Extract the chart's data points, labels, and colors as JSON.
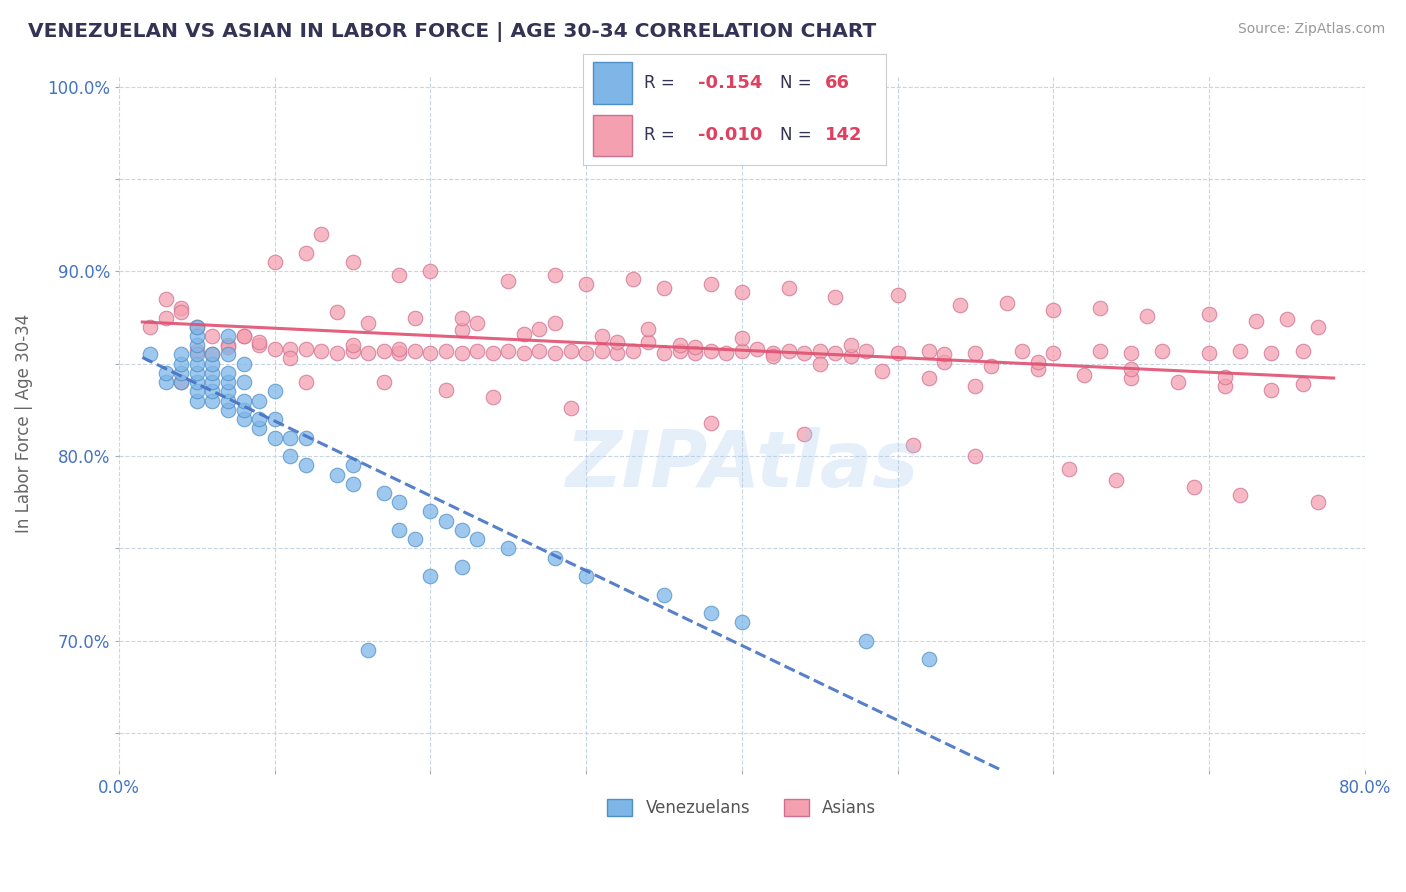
{
  "title": "VENEZUELAN VS ASIAN IN LABOR FORCE | AGE 30-34 CORRELATION CHART",
  "source_text": "Source: ZipAtlas.com",
  "ylabel": "In Labor Force | Age 30-34",
  "xlim": [
    0.0,
    0.8
  ],
  "ylim": [
    0.63,
    1.005
  ],
  "blue_color": "#7EB6E8",
  "pink_color": "#F4A0B0",
  "blue_line_color": "#4472C4",
  "pink_line_color": "#E05070",
  "venezuelan_x": [
    0.02,
    0.03,
    0.03,
    0.04,
    0.04,
    0.04,
    0.04,
    0.05,
    0.05,
    0.05,
    0.05,
    0.05,
    0.05,
    0.05,
    0.05,
    0.05,
    0.06,
    0.06,
    0.06,
    0.06,
    0.06,
    0.06,
    0.07,
    0.07,
    0.07,
    0.07,
    0.07,
    0.07,
    0.07,
    0.08,
    0.08,
    0.08,
    0.08,
    0.08,
    0.09,
    0.09,
    0.09,
    0.1,
    0.1,
    0.1,
    0.11,
    0.11,
    0.12,
    0.12,
    0.14,
    0.15,
    0.15,
    0.17,
    0.18,
    0.2,
    0.21,
    0.22,
    0.23,
    0.25,
    0.28,
    0.3,
    0.35,
    0.38,
    0.4,
    0.48,
    0.52,
    0.18,
    0.19,
    0.2,
    0.22,
    0.16
  ],
  "venezuelan_y": [
    0.855,
    0.84,
    0.845,
    0.84,
    0.845,
    0.85,
    0.855,
    0.83,
    0.835,
    0.84,
    0.845,
    0.85,
    0.855,
    0.86,
    0.865,
    0.87,
    0.83,
    0.835,
    0.84,
    0.845,
    0.85,
    0.855,
    0.825,
    0.83,
    0.835,
    0.84,
    0.845,
    0.855,
    0.865,
    0.82,
    0.825,
    0.83,
    0.84,
    0.85,
    0.815,
    0.82,
    0.83,
    0.81,
    0.82,
    0.835,
    0.8,
    0.81,
    0.795,
    0.81,
    0.79,
    0.785,
    0.795,
    0.78,
    0.775,
    0.77,
    0.765,
    0.76,
    0.755,
    0.75,
    0.745,
    0.735,
    0.725,
    0.715,
    0.71,
    0.7,
    0.69,
    0.76,
    0.755,
    0.735,
    0.74,
    0.695
  ],
  "asian_x": [
    0.02,
    0.03,
    0.04,
    0.05,
    0.06,
    0.07,
    0.08,
    0.09,
    0.1,
    0.11,
    0.12,
    0.13,
    0.14,
    0.15,
    0.16,
    0.17,
    0.18,
    0.19,
    0.2,
    0.21,
    0.22,
    0.23,
    0.24,
    0.25,
    0.26,
    0.27,
    0.28,
    0.29,
    0.3,
    0.31,
    0.32,
    0.33,
    0.35,
    0.36,
    0.37,
    0.38,
    0.39,
    0.4,
    0.42,
    0.43,
    0.44,
    0.45,
    0.46,
    0.48,
    0.5,
    0.52,
    0.55,
    0.58,
    0.6,
    0.63,
    0.65,
    0.67,
    0.7,
    0.72,
    0.74,
    0.76,
    0.1,
    0.12,
    0.15,
    0.18,
    0.2,
    0.25,
    0.28,
    0.3,
    0.33,
    0.35,
    0.38,
    0.4,
    0.43,
    0.46,
    0.5,
    0.54,
    0.57,
    0.6,
    0.63,
    0.66,
    0.7,
    0.73,
    0.75,
    0.77,
    0.16,
    0.22,
    0.26,
    0.32,
    0.36,
    0.41,
    0.47,
    0.53,
    0.56,
    0.59,
    0.62,
    0.65,
    0.68,
    0.71,
    0.74,
    0.14,
    0.19,
    0.23,
    0.27,
    0.31,
    0.34,
    0.37,
    0.42,
    0.45,
    0.49,
    0.52,
    0.55,
    0.04,
    0.13,
    0.17,
    0.21,
    0.24,
    0.29,
    0.38,
    0.44,
    0.51,
    0.55,
    0.61,
    0.64,
    0.69,
    0.72,
    0.77,
    0.12,
    0.08,
    0.09,
    0.07,
    0.05,
    0.06,
    0.11,
    0.15,
    0.18,
    0.22,
    0.28,
    0.34,
    0.4,
    0.47,
    0.53,
    0.59,
    0.65,
    0.71,
    0.76,
    0.03,
    0.04
  ],
  "asian_y": [
    0.87,
    0.875,
    0.88,
    0.87,
    0.865,
    0.86,
    0.865,
    0.86,
    0.858,
    0.858,
    0.858,
    0.857,
    0.856,
    0.857,
    0.856,
    0.857,
    0.856,
    0.857,
    0.856,
    0.857,
    0.856,
    0.857,
    0.856,
    0.857,
    0.856,
    0.857,
    0.856,
    0.857,
    0.856,
    0.857,
    0.856,
    0.857,
    0.856,
    0.857,
    0.856,
    0.857,
    0.856,
    0.857,
    0.856,
    0.857,
    0.856,
    0.857,
    0.856,
    0.857,
    0.856,
    0.857,
    0.856,
    0.857,
    0.856,
    0.857,
    0.856,
    0.857,
    0.856,
    0.857,
    0.856,
    0.857,
    0.905,
    0.91,
    0.905,
    0.898,
    0.9,
    0.895,
    0.898,
    0.893,
    0.896,
    0.891,
    0.893,
    0.889,
    0.891,
    0.886,
    0.887,
    0.882,
    0.883,
    0.879,
    0.88,
    0.876,
    0.877,
    0.873,
    0.874,
    0.87,
    0.872,
    0.868,
    0.866,
    0.862,
    0.86,
    0.858,
    0.854,
    0.851,
    0.849,
    0.847,
    0.844,
    0.842,
    0.84,
    0.838,
    0.836,
    0.878,
    0.875,
    0.872,
    0.869,
    0.865,
    0.862,
    0.859,
    0.854,
    0.85,
    0.846,
    0.842,
    0.838,
    0.84,
    0.92,
    0.84,
    0.836,
    0.832,
    0.826,
    0.818,
    0.812,
    0.806,
    0.8,
    0.793,
    0.787,
    0.783,
    0.779,
    0.775,
    0.84,
    0.865,
    0.862,
    0.859,
    0.857,
    0.855,
    0.853,
    0.86,
    0.858,
    0.875,
    0.872,
    0.869,
    0.864,
    0.86,
    0.855,
    0.851,
    0.847,
    0.843,
    0.839,
    0.885,
    0.878
  ]
}
